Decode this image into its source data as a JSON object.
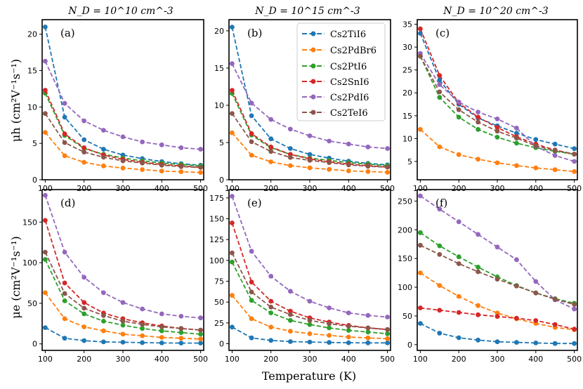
{
  "figure": {
    "xlabel": "Temperature (K)",
    "ylabel_top": "μh (cm²V⁻¹s⁻¹)",
    "ylabel_bottom": "μe (cm²V⁻¹s⁻¹)"
  },
  "column_titles": [
    "N_D = 10^10 cm^-3",
    "N_D = 10^15 cm^-3",
    "N_D = 10^20 cm^-3"
  ],
  "legend": [
    {
      "name": "Cs2TiI6",
      "color": "#1f77b4"
    },
    {
      "name": "Cs2PdBr6",
      "color": "#ff7f0e"
    },
    {
      "name": "Cs2PtI6",
      "color": "#2ca02c"
    },
    {
      "name": "Cs2SnI6",
      "color": "#d62728"
    },
    {
      "name": "Cs2PdI6",
      "color": "#9467bd"
    },
    {
      "name": "Cs2TeI6",
      "color": "#8c564b"
    }
  ],
  "chart_data": [
    {
      "type": "line",
      "label": "(a)",
      "title": "N_D = 10^10 cm^-3",
      "xlabel": "",
      "ylabel": "μh (cm²V⁻¹s⁻¹)",
      "x": [
        100,
        150,
        200,
        250,
        300,
        350,
        400,
        450,
        500
      ],
      "xlim": [
        92,
        508
      ],
      "ylim": [
        0,
        22
      ],
      "xticks": [
        100,
        200,
        300,
        400,
        500
      ],
      "yticks": [
        0,
        5,
        10,
        15,
        20
      ],
      "series": [
        {
          "name": "Cs2TiI6",
          "values": [
            21.0,
            8.6,
            5.5,
            4.2,
            3.4,
            2.9,
            2.5,
            2.2,
            2.0
          ]
        },
        {
          "name": "Cs2PdBr6",
          "values": [
            6.5,
            3.3,
            2.4,
            1.9,
            1.6,
            1.4,
            1.2,
            1.1,
            1.0
          ]
        },
        {
          "name": "Cs2PtI6",
          "values": [
            11.9,
            6.1,
            4.3,
            3.5,
            3.0,
            2.6,
            2.3,
            2.1,
            1.9
          ]
        },
        {
          "name": "Cs2SnI6",
          "values": [
            12.3,
            6.3,
            4.4,
            3.4,
            2.8,
            2.4,
            2.1,
            1.9,
            1.7
          ]
        },
        {
          "name": "Cs2PdI6",
          "values": [
            16.3,
            10.5,
            8.1,
            6.8,
            5.9,
            5.2,
            4.8,
            4.4,
            4.2
          ]
        },
        {
          "name": "Cs2TeI6",
          "values": [
            9.1,
            5.1,
            3.8,
            3.1,
            2.6,
            2.3,
            2.0,
            1.8,
            1.7
          ]
        }
      ]
    },
    {
      "type": "line",
      "label": "(b)",
      "title": "N_D = 10^15 cm^-3",
      "xlabel": "",
      "ylabel": "",
      "x": [
        100,
        150,
        200,
        250,
        300,
        350,
        400,
        450,
        500
      ],
      "xlim": [
        92,
        508
      ],
      "ylim": [
        0,
        21.5
      ],
      "xticks": [
        100,
        200,
        300,
        400,
        500
      ],
      "yticks": [
        0,
        5,
        10,
        15,
        20
      ],
      "series": [
        {
          "name": "Cs2TiI6",
          "values": [
            20.5,
            8.6,
            5.5,
            4.2,
            3.4,
            2.9,
            2.5,
            2.2,
            2.0
          ]
        },
        {
          "name": "Cs2PdBr6",
          "values": [
            6.3,
            3.3,
            2.4,
            1.9,
            1.6,
            1.4,
            1.2,
            1.1,
            1.0
          ]
        },
        {
          "name": "Cs2PtI6",
          "values": [
            11.6,
            6.0,
            4.3,
            3.4,
            2.9,
            2.6,
            2.3,
            2.1,
            1.9
          ]
        },
        {
          "name": "Cs2SnI6",
          "values": [
            12.0,
            6.2,
            4.4,
            3.4,
            2.8,
            2.4,
            2.1,
            1.9,
            1.7
          ]
        },
        {
          "name": "Cs2PdI6",
          "values": [
            15.6,
            10.3,
            8.1,
            6.8,
            5.9,
            5.2,
            4.8,
            4.4,
            4.2
          ]
        },
        {
          "name": "Cs2TeI6",
          "values": [
            8.9,
            5.1,
            3.8,
            3.0,
            2.6,
            2.3,
            2.0,
            1.8,
            1.7
          ]
        }
      ]
    },
    {
      "type": "line",
      "label": "(c)",
      "title": "N_D = 10^20 cm^-3",
      "xlabel": "",
      "ylabel": "",
      "x": [
        100,
        150,
        200,
        250,
        300,
        350,
        400,
        450,
        500
      ],
      "xlim": [
        92,
        508
      ],
      "ylim": [
        1,
        36
      ],
      "xticks": [
        100,
        200,
        300,
        400,
        500
      ],
      "yticks": [
        5,
        10,
        15,
        20,
        25,
        30,
        35
      ],
      "series": [
        {
          "name": "Cs2TiI6",
          "values": [
            33.0,
            22.8,
            17.5,
            14.5,
            12.8,
            11.2,
            9.8,
            8.8,
            7.8
          ]
        },
        {
          "name": "Cs2PdBr6",
          "values": [
            12.0,
            8.2,
            6.5,
            5.5,
            4.7,
            4.1,
            3.6,
            3.2,
            2.8
          ]
        },
        {
          "name": "Cs2PtI6",
          "values": [
            28.0,
            19.0,
            14.7,
            12.0,
            10.3,
            9.0,
            8.0,
            7.2,
            6.6
          ]
        },
        {
          "name": "Cs2SnI6",
          "values": [
            34.0,
            23.8,
            17.8,
            14.7,
            12.4,
            10.4,
            8.8,
            7.5,
            6.6
          ]
        },
        {
          "name": "Cs2PdI6",
          "values": [
            28.6,
            21.8,
            18.0,
            15.8,
            14.3,
            12.3,
            8.3,
            6.3,
            5.0
          ]
        },
        {
          "name": "Cs2TeI6",
          "values": [
            28.0,
            20.2,
            16.3,
            13.6,
            11.6,
            10.1,
            8.4,
            7.4,
            6.6
          ]
        }
      ]
    },
    {
      "type": "line",
      "label": "(d)",
      "title": "",
      "xlabel": "",
      "ylabel": "μe (cm²V⁻¹s⁻¹)",
      "x": [
        100,
        150,
        200,
        250,
        300,
        350,
        400,
        450,
        500
      ],
      "xlim": [
        92,
        508
      ],
      "ylim": [
        -8,
        190
      ],
      "xticks": [
        100,
        200,
        300,
        400,
        500
      ],
      "yticks": [
        0,
        50,
        100,
        150
      ],
      "series": [
        {
          "name": "Cs2TiI6",
          "values": [
            20,
            7,
            4,
            2.5,
            2,
            1.5,
            1.2,
            1,
            1
          ]
        },
        {
          "name": "Cs2PdBr6",
          "values": [
            63,
            31,
            21,
            16,
            12,
            10,
            8,
            7,
            6
          ]
        },
        {
          "name": "Cs2PtI6",
          "values": [
            104,
            53,
            37,
            28,
            23,
            19,
            16,
            14,
            12
          ]
        },
        {
          "name": "Cs2SnI6",
          "values": [
            152,
            75,
            51,
            38,
            31,
            26,
            22,
            19,
            17
          ]
        },
        {
          "name": "Cs2PdI6",
          "values": [
            183,
            113,
            82,
            63,
            51,
            43,
            37,
            34,
            32
          ]
        },
        {
          "name": "Cs2TeI6",
          "values": [
            113,
            62,
            44,
            35,
            28,
            24,
            21,
            19,
            17
          ]
        }
      ]
    },
    {
      "type": "line",
      "label": "(e)",
      "title": "",
      "xlabel": "Temperature (K)",
      "ylabel": "",
      "x": [
        100,
        150,
        200,
        250,
        300,
        350,
        400,
        450,
        500
      ],
      "xlim": [
        92,
        508
      ],
      "ylim": [
        -8,
        185
      ],
      "xticks": [
        100,
        200,
        300,
        400,
        500
      ],
      "yticks": [
        0,
        25,
        50,
        75,
        100,
        125,
        150,
        175
      ],
      "series": [
        {
          "name": "Cs2TiI6",
          "values": [
            20,
            7,
            4,
            2.5,
            2,
            1.5,
            1.2,
            1,
            1
          ]
        },
        {
          "name": "Cs2PdBr6",
          "values": [
            58,
            30,
            20,
            15,
            12,
            10,
            8,
            7,
            6
          ]
        },
        {
          "name": "Cs2PtI6",
          "values": [
            98,
            52,
            37,
            28,
            23,
            19,
            16,
            14,
            12
          ]
        },
        {
          "name": "Cs2SnI6",
          "values": [
            145,
            74,
            51,
            39,
            31,
            26,
            22,
            19,
            17
          ]
        },
        {
          "name": "Cs2PdI6",
          "values": [
            177,
            111,
            81,
            63,
            51,
            43,
            37,
            34,
            32
          ]
        },
        {
          "name": "Cs2TeI6",
          "values": [
            109,
            62,
            44,
            35,
            28,
            24,
            21,
            19,
            17
          ]
        }
      ]
    },
    {
      "type": "line",
      "label": "(f)",
      "title": "",
      "xlabel": "",
      "ylabel": "",
      "x": [
        100,
        150,
        200,
        250,
        300,
        350,
        400,
        450,
        500
      ],
      "xlim": [
        92,
        508
      ],
      "ylim": [
        -10,
        270
      ],
      "xticks": [
        100,
        200,
        300,
        400,
        500
      ],
      "yticks": [
        0,
        50,
        100,
        150,
        200,
        250
      ],
      "series": [
        {
          "name": "Cs2TiI6",
          "values": [
            37,
            20,
            12,
            8,
            5,
            4,
            3,
            2,
            2
          ]
        },
        {
          "name": "Cs2PdBr6",
          "values": [
            125,
            103,
            84,
            68,
            55,
            45,
            37,
            30,
            26
          ]
        },
        {
          "name": "Cs2PtI6",
          "values": [
            195,
            172,
            153,
            135,
            118,
            103,
            90,
            80,
            72
          ]
        },
        {
          "name": "Cs2SnI6",
          "values": [
            64,
            60,
            56,
            52,
            49,
            46,
            42,
            35,
            27
          ]
        },
        {
          "name": "Cs2PdI6",
          "values": [
            259,
            236,
            214,
            192,
            170,
            148,
            110,
            78,
            62
          ]
        },
        {
          "name": "Cs2TeI6",
          "values": [
            173,
            157,
            141,
            127,
            114,
            102,
            90,
            79,
            70
          ]
        }
      ]
    }
  ]
}
